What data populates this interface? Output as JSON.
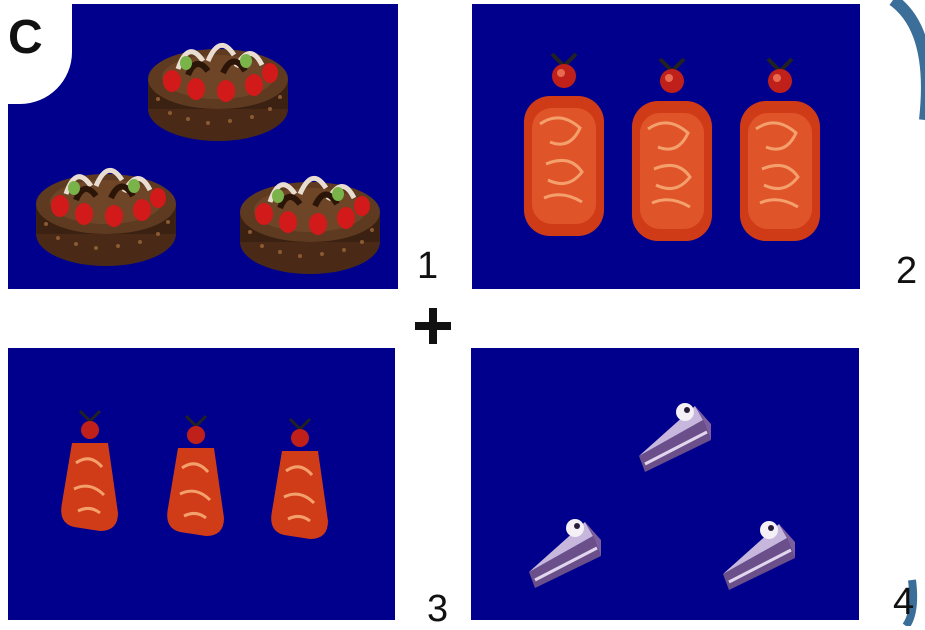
{
  "figure": {
    "corner_label": "C",
    "operator_symbol": "+",
    "panels": [
      {
        "number": "1",
        "item_icon": "chocolate-strawberry-cake-icon",
        "item_count": 3
      },
      {
        "number": "2",
        "item_icon": "red-pendant-icon",
        "item_count": 3
      },
      {
        "number": "3",
        "item_icon": "red-pendant-icon",
        "item_count": 3
      },
      {
        "number": "4",
        "item_icon": "cake-slice-icon",
        "item_count": 3
      }
    ]
  },
  "colors": {
    "panel_background": "#00008c",
    "deco_arc": "#3c6e9a"
  }
}
